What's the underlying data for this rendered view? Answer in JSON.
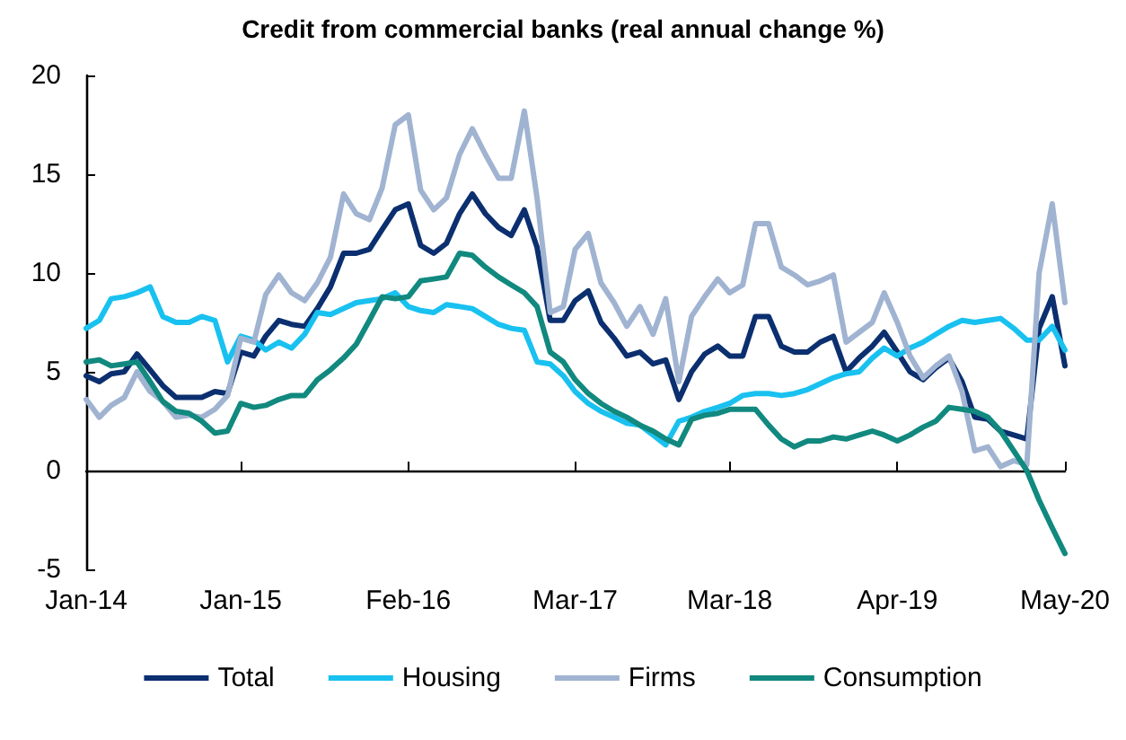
{
  "chart_data": {
    "type": "line",
    "title": "Credit from commercial banks (real annual change %)",
    "x": [
      "2014-01",
      "2014-02",
      "2014-03",
      "2014-04",
      "2014-05",
      "2014-06",
      "2014-07",
      "2014-08",
      "2014-09",
      "2014-10",
      "2014-11",
      "2014-12",
      "2015-01",
      "2015-02",
      "2015-03",
      "2015-04",
      "2015-05",
      "2015-06",
      "2015-07",
      "2015-08",
      "2015-09",
      "2015-10",
      "2015-11",
      "2015-12",
      "2016-01",
      "2016-02",
      "2016-03",
      "2016-04",
      "2016-05",
      "2016-06",
      "2016-07",
      "2016-08",
      "2016-09",
      "2016-10",
      "2016-11",
      "2016-12",
      "2017-01",
      "2017-02",
      "2017-03",
      "2017-04",
      "2017-05",
      "2017-06",
      "2017-07",
      "2017-08",
      "2017-09",
      "2017-10",
      "2017-11",
      "2017-12",
      "2018-01",
      "2018-02",
      "2018-03",
      "2018-04",
      "2018-05",
      "2018-06",
      "2018-07",
      "2018-08",
      "2018-09",
      "2018-10",
      "2018-11",
      "2018-12",
      "2019-01",
      "2019-02",
      "2019-03",
      "2019-04",
      "2019-05",
      "2019-06",
      "2019-07",
      "2019-08",
      "2019-09",
      "2019-10",
      "2019-11",
      "2019-12",
      "2020-01",
      "2020-02",
      "2020-03",
      "2020-04",
      "2020-05"
    ],
    "series": [
      {
        "name": "Total",
        "color": "#0b2f6f",
        "values": [
          4.8,
          4.5,
          4.9,
          5.0,
          5.9,
          5.1,
          4.3,
          3.7,
          3.7,
          3.7,
          4.0,
          3.9,
          6.0,
          5.8,
          6.8,
          7.6,
          7.4,
          7.3,
          8.2,
          9.3,
          11.0,
          11.0,
          11.2,
          12.2,
          13.2,
          13.5,
          11.4,
          11.0,
          11.5,
          13.0,
          14.0,
          13.0,
          12.3,
          11.9,
          13.2,
          11.3,
          7.6,
          7.6,
          8.6,
          9.1,
          7.5,
          6.7,
          5.8,
          6.0,
          5.4,
          5.6,
          3.6,
          5.0,
          5.9,
          6.3,
          5.8,
          5.8,
          7.8,
          7.8,
          6.3,
          6.0,
          6.0,
          6.5,
          6.8,
          5.0,
          5.7,
          6.3,
          7.0,
          6.0,
          5.0,
          4.6,
          5.2,
          5.7,
          4.5,
          2.7,
          2.6,
          2.0,
          1.8,
          1.6,
          7.2,
          8.8,
          5.3
        ]
      },
      {
        "name": "Housing",
        "color": "#19c1f0",
        "values": [
          7.2,
          7.6,
          8.7,
          8.8,
          9.0,
          9.3,
          7.8,
          7.5,
          7.5,
          7.8,
          7.6,
          5.5,
          6.8,
          6.6,
          6.1,
          6.5,
          6.2,
          6.9,
          8.0,
          7.9,
          8.2,
          8.5,
          8.6,
          8.7,
          9.0,
          8.3,
          8.1,
          8.0,
          8.4,
          8.3,
          8.2,
          7.8,
          7.4,
          7.2,
          7.1,
          5.5,
          5.4,
          4.8,
          4.0,
          3.4,
          3.0,
          2.7,
          2.4,
          2.3,
          1.8,
          1.3,
          2.5,
          2.7,
          3.0,
          3.2,
          3.4,
          3.8,
          3.9,
          3.9,
          3.8,
          3.9,
          4.1,
          4.4,
          4.7,
          4.9,
          5.0,
          5.7,
          6.2,
          5.8,
          6.2,
          6.5,
          6.9,
          7.3,
          7.6,
          7.5,
          7.6,
          7.7,
          7.2,
          6.6,
          6.6,
          7.3,
          6.1
        ]
      },
      {
        "name": "Firms",
        "color": "#a0b3d1",
        "values": [
          3.6,
          2.7,
          3.3,
          3.7,
          5.0,
          4.0,
          3.5,
          2.7,
          2.8,
          2.7,
          3.1,
          3.8,
          6.7,
          6.5,
          8.9,
          9.9,
          9.0,
          8.6,
          9.5,
          10.8,
          14.0,
          13.0,
          12.7,
          14.3,
          17.5,
          18.0,
          14.2,
          13.2,
          13.8,
          16.0,
          17.3,
          16.0,
          14.8,
          14.8,
          18.2,
          13.8,
          8.0,
          8.3,
          11.2,
          12.0,
          9.5,
          8.5,
          7.3,
          8.3,
          6.9,
          8.7,
          4.5,
          7.8,
          8.8,
          9.7,
          9.0,
          9.4,
          12.5,
          12.5,
          10.3,
          9.9,
          9.4,
          9.6,
          9.9,
          6.5,
          7.0,
          7.5,
          9.0,
          7.5,
          5.8,
          4.7,
          5.3,
          5.8,
          4.0,
          1.0,
          1.2,
          0.2,
          0.5,
          0.3,
          10.0,
          13.5,
          8.5
        ]
      },
      {
        "name": "Consumption",
        "color": "#11897f",
        "values": [
          5.5,
          5.6,
          5.3,
          5.4,
          5.5,
          4.5,
          3.5,
          3.0,
          2.9,
          2.5,
          1.9,
          2.0,
          3.4,
          3.2,
          3.3,
          3.6,
          3.8,
          3.8,
          4.6,
          5.1,
          5.7,
          6.4,
          7.6,
          8.8,
          8.7,
          8.8,
          9.6,
          9.7,
          9.8,
          11.0,
          10.9,
          10.3,
          9.8,
          9.4,
          9.0,
          8.3,
          6.0,
          5.5,
          4.6,
          3.9,
          3.4,
          3.0,
          2.7,
          2.3,
          2.0,
          1.6,
          1.3,
          2.6,
          2.8,
          2.9,
          3.1,
          3.1,
          3.1,
          2.3,
          1.6,
          1.2,
          1.5,
          1.5,
          1.7,
          1.6,
          1.8,
          2.0,
          1.8,
          1.5,
          1.8,
          2.2,
          2.5,
          3.2,
          3.1,
          3.0,
          2.7,
          2.0,
          1.0,
          0.0,
          -1.5,
          -2.9,
          -4.2
        ]
      }
    ],
    "xlim": [
      "2014-01",
      "2020-05"
    ],
    "xticks": [
      {
        "value": "2014-01",
        "label": "Jan-14"
      },
      {
        "value": "2015-01",
        "label": "Jan-15"
      },
      {
        "value": "2016-02",
        "label": "Feb-16"
      },
      {
        "value": "2017-03",
        "label": "Mar-17"
      },
      {
        "value": "2018-03",
        "label": "Mar-18"
      },
      {
        "value": "2019-04",
        "label": "Apr-19"
      },
      {
        "value": "2020-05",
        "label": "May-20"
      }
    ],
    "ylim": [
      -5,
      20
    ],
    "yticks": [
      -5,
      0,
      5,
      10,
      15,
      20
    ],
    "legend": "bottom",
    "marker": "none",
    "line_style": "solid"
  }
}
